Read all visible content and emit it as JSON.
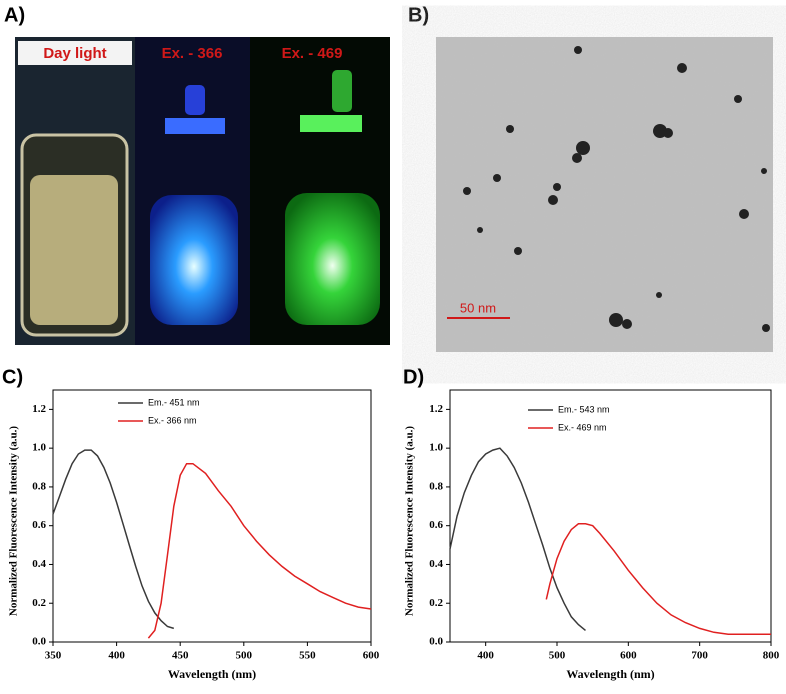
{
  "panels": {
    "a": {
      "label": "A)",
      "photos": [
        "Day light",
        "Ex. - 366",
        "Ex. - 469"
      ]
    },
    "b": {
      "label": "B)",
      "scale_bar": "50 nm"
    }
  },
  "chart_data": [
    {
      "type": "line",
      "label": "C)",
      "x_label": "Wavelength (nm)",
      "y_label": "Normalized Fluorescence Intensity (a.u.)",
      "xlim": [
        350,
        600
      ],
      "xticks": [
        350,
        400,
        450,
        500,
        550,
        600
      ],
      "ylim": [
        0,
        1.3
      ],
      "yticks": [
        {
          "value": 0,
          "label": "0.0"
        },
        0.2,
        0.4,
        0.6,
        0.8,
        {
          "value": 1,
          "label": "1.0"
        },
        1.2
      ],
      "series": [
        {
          "name": "Em.- 451 nm",
          "color": "#3a3a3a",
          "x": [
            350,
            355,
            360,
            365,
            370,
            375,
            380,
            385,
            390,
            395,
            400,
            405,
            410,
            415,
            420,
            425,
            430,
            435,
            440,
            445
          ],
          "values": [
            0.66,
            0.75,
            0.84,
            0.92,
            0.97,
            0.99,
            0.99,
            0.96,
            0.9,
            0.82,
            0.72,
            0.61,
            0.5,
            0.39,
            0.29,
            0.21,
            0.15,
            0.11,
            0.08,
            0.07
          ]
        },
        {
          "name": "Ex.-  366 nm",
          "color": "#e02020",
          "x": [
            425,
            430,
            435,
            440,
            445,
            450,
            455,
            460,
            470,
            480,
            490,
            500,
            510,
            520,
            530,
            540,
            550,
            560,
            570,
            580,
            590,
            600
          ],
          "values": [
            0.02,
            0.06,
            0.2,
            0.45,
            0.7,
            0.86,
            0.92,
            0.92,
            0.87,
            0.78,
            0.7,
            0.6,
            0.52,
            0.45,
            0.39,
            0.34,
            0.3,
            0.26,
            0.23,
            0.2,
            0.18,
            0.17
          ]
        }
      ]
    },
    {
      "type": "line",
      "label": "D)",
      "x_label": "Wavelength (nm)",
      "y_label": "Normalized Fluorescence Intensity (a.u.)",
      "xlim": [
        350,
        800
      ],
      "xticks": [
        400,
        500,
        600,
        700,
        800
      ],
      "ylim": [
        0,
        1.3
      ],
      "yticks": [
        {
          "value": 0,
          "label": "0.0"
        },
        0.2,
        0.4,
        0.6,
        0.8,
        {
          "value": 1,
          "label": "1.0"
        },
        1.2
      ],
      "series": [
        {
          "name": "Em.- 543 nm",
          "color": "#3a3a3a",
          "x": [
            350,
            360,
            370,
            380,
            390,
            400,
            410,
            420,
            430,
            440,
            450,
            460,
            470,
            480,
            490,
            500,
            510,
            520,
            530,
            540
          ],
          "values": [
            0.48,
            0.65,
            0.77,
            0.86,
            0.93,
            0.97,
            0.99,
            1.0,
            0.96,
            0.9,
            0.82,
            0.72,
            0.61,
            0.5,
            0.38,
            0.28,
            0.2,
            0.13,
            0.09,
            0.06
          ]
        },
        {
          "name": "Ex.-  469 nm",
          "color": "#e02020",
          "x": [
            485,
            490,
            500,
            510,
            520,
            530,
            540,
            550,
            560,
            580,
            600,
            620,
            640,
            660,
            680,
            700,
            720,
            740,
            760,
            780,
            800
          ],
          "values": [
            0.22,
            0.3,
            0.43,
            0.52,
            0.58,
            0.61,
            0.61,
            0.6,
            0.56,
            0.47,
            0.37,
            0.28,
            0.2,
            0.14,
            0.1,
            0.07,
            0.05,
            0.04,
            0.04,
            0.04,
            0.04
          ]
        }
      ]
    }
  ]
}
